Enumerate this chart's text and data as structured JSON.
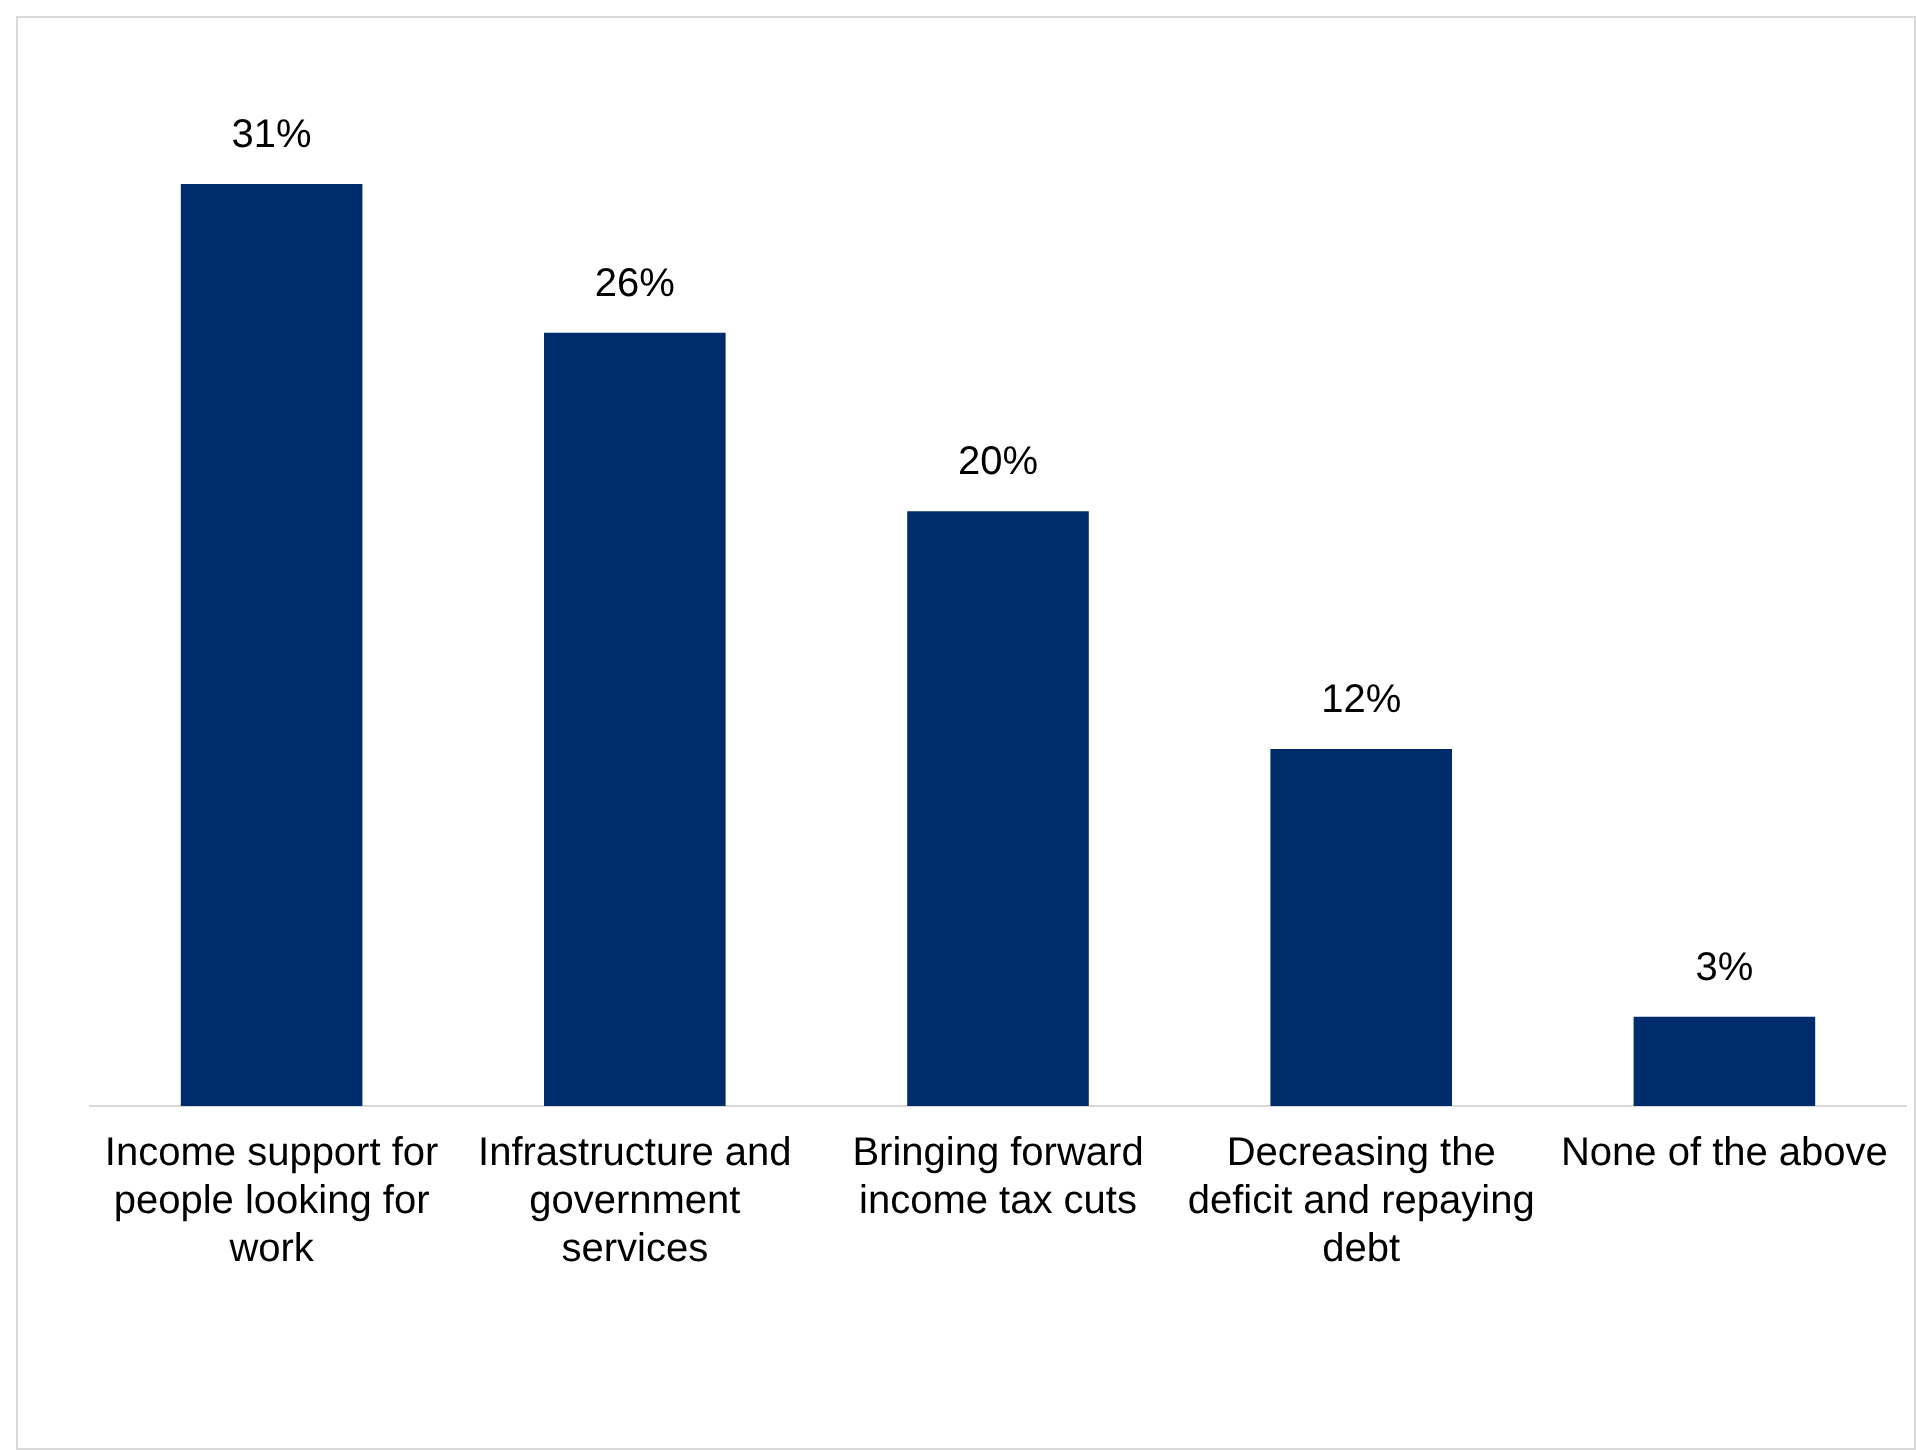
{
  "chart_data": {
    "type": "bar",
    "categories": [
      "Income support for people looking for work",
      "Infrastructure and government services",
      "Bringing forward income tax cuts",
      "Decreasing the deficit and repaying debt",
      "None of the above"
    ],
    "values": [
      31,
      26,
      20,
      12,
      3
    ],
    "value_labels": [
      "31%",
      "26%",
      "20%",
      "12%",
      "3%"
    ],
    "color": "#002c6b",
    "grid": false,
    "legend": false
  }
}
